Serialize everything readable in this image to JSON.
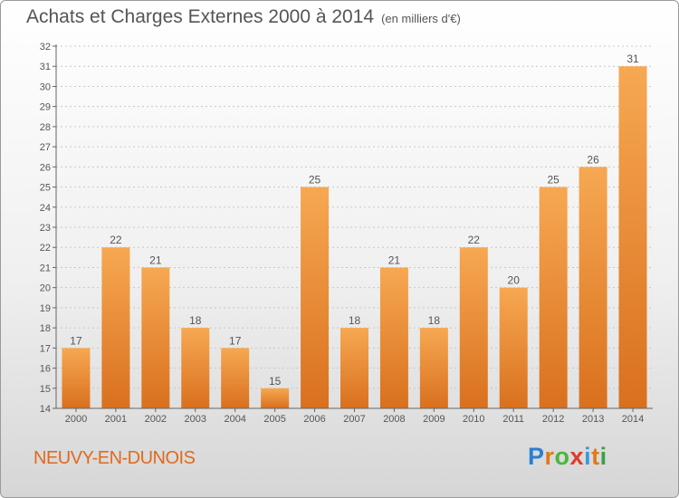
{
  "title": "Achats et Charges Externes 2000 à 2014",
  "subtitle": "(en milliers d'€)",
  "commune": "NEUVY-EN-DUNOIS",
  "logo": {
    "letters": [
      "P",
      "r",
      "o",
      "x",
      "i",
      "t",
      "i"
    ],
    "colors": [
      "#2a7fd1",
      "#e07a1a",
      "#4ab640",
      "#e03a2a",
      "#3a9ad9",
      "#e07a1a",
      "#3aa14a"
    ]
  },
  "colors": {
    "bar_light": "#f6a450",
    "bar_dark": "#dc7320",
    "text": "#555555"
  },
  "chart_data": {
    "type": "bar",
    "categories": [
      "2000",
      "2001",
      "2002",
      "2003",
      "2004",
      "2005",
      "2006",
      "2007",
      "2008",
      "2009",
      "2010",
      "2011",
      "2012",
      "2013",
      "2014"
    ],
    "values": [
      17,
      22,
      21,
      18,
      17,
      15,
      25,
      18,
      21,
      18,
      22,
      20,
      25,
      26,
      31
    ],
    "ylim": [
      14,
      32
    ],
    "yticks": [
      14,
      15,
      16,
      17,
      18,
      19,
      20,
      21,
      22,
      23,
      24,
      25,
      26,
      27,
      28,
      29,
      30,
      31,
      32
    ],
    "grid": true
  }
}
